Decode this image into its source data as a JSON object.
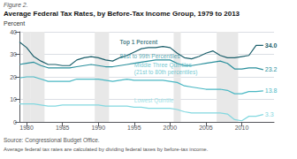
{
  "chart_data": {
    "type": "line",
    "figure_label": "Figure 2.",
    "title": "Average Federal Tax Rates, by Before-Tax Income Group, 1979 to 2013",
    "ylabel": "Percent",
    "source": "Source: Congressional Budget Office.",
    "footnote": "Average federal tax rates are calculated by dividing federal taxes by before-tax income.",
    "x": [
      1979,
      1980,
      1981,
      1982,
      1983,
      1984,
      1985,
      1986,
      1987,
      1988,
      1989,
      1990,
      1991,
      1992,
      1993,
      1994,
      1995,
      1996,
      1997,
      1998,
      1999,
      2000,
      2001,
      2002,
      2003,
      2004,
      2005,
      2006,
      2007,
      2008,
      2009,
      2010,
      2011,
      2012,
      2013
    ],
    "series": [
      {
        "name": "Top 1 Percent",
        "color": "#1c5f6b",
        "values": [
          35.5,
          33.0,
          29.0,
          27.0,
          25.5,
          25.5,
          25.0,
          25.0,
          27.5,
          28.5,
          29.0,
          28.5,
          27.5,
          27.0,
          28.5,
          29.5,
          31.0,
          32.5,
          33.0,
          33.0,
          33.5,
          33.0,
          30.5,
          28.5,
          28.0,
          29.0,
          30.5,
          31.5,
          29.5,
          28.5,
          28.5,
          29.0,
          29.5,
          34.0,
          34.0
        ],
        "value_labels": [
          null,
          null,
          null,
          null,
          null,
          null,
          null,
          null,
          null,
          null,
          null,
          null,
          null,
          null,
          null,
          null,
          null,
          null,
          null,
          null,
          null,
          null,
          null,
          null,
          null,
          null,
          null,
          null,
          null,
          null,
          null,
          null,
          null,
          null,
          "34.0"
        ]
      },
      {
        "name": "81st to 99th Percentiles",
        "color": "#2a8f9c",
        "values": [
          25.5,
          26.0,
          26.5,
          25.0,
          24.0,
          24.0,
          24.0,
          24.0,
          24.5,
          25.0,
          25.5,
          25.0,
          24.5,
          24.5,
          25.0,
          25.5,
          26.0,
          26.5,
          27.0,
          27.5,
          27.5,
          27.5,
          26.0,
          25.0,
          25.0,
          25.5,
          26.0,
          26.5,
          27.0,
          26.0,
          23.5,
          23.5,
          24.0,
          24.0,
          23.2
        ],
        "value_labels": [
          null,
          null,
          null,
          null,
          null,
          null,
          null,
          null,
          null,
          null,
          null,
          null,
          null,
          null,
          null,
          null,
          null,
          null,
          null,
          null,
          null,
          null,
          null,
          null,
          null,
          null,
          null,
          null,
          null,
          null,
          null,
          null,
          null,
          null,
          "23.2"
        ]
      },
      {
        "name": "Middle Three Quintiles\n(21st to 80th percentiles)",
        "color": "#4ab8c4",
        "values": [
          19.5,
          20.0,
          20.0,
          19.0,
          18.0,
          18.0,
          18.0,
          18.0,
          19.0,
          19.0,
          19.0,
          19.0,
          18.5,
          18.0,
          18.5,
          19.0,
          18.5,
          18.5,
          18.5,
          18.5,
          18.5,
          18.0,
          17.5,
          16.0,
          15.5,
          15.0,
          14.5,
          14.5,
          14.5,
          14.0,
          12.5,
          12.5,
          13.5,
          13.5,
          13.8
        ],
        "value_labels": [
          null,
          null,
          null,
          null,
          null,
          null,
          null,
          null,
          null,
          null,
          null,
          null,
          null,
          null,
          null,
          null,
          null,
          null,
          null,
          null,
          null,
          null,
          null,
          null,
          null,
          null,
          null,
          null,
          null,
          null,
          null,
          null,
          null,
          null,
          "13.8"
        ]
      },
      {
        "name": "Lowest Quintile",
        "color": "#82d8e0",
        "values": [
          8.0,
          8.0,
          8.0,
          7.5,
          7.0,
          7.0,
          7.5,
          7.5,
          7.5,
          7.5,
          7.5,
          7.5,
          7.0,
          7.0,
          7.0,
          7.0,
          6.5,
          6.5,
          6.0,
          6.0,
          6.0,
          6.0,
          5.5,
          4.5,
          4.0,
          4.0,
          4.0,
          4.0,
          4.0,
          3.5,
          1.0,
          0.5,
          2.5,
          2.5,
          3.3
        ],
        "value_labels": [
          null,
          null,
          null,
          null,
          null,
          null,
          null,
          null,
          null,
          null,
          null,
          null,
          null,
          null,
          null,
          null,
          null,
          null,
          null,
          null,
          null,
          null,
          null,
          null,
          null,
          null,
          null,
          null,
          null,
          null,
          null,
          null,
          null,
          null,
          "3.3"
        ]
      }
    ],
    "annotations": [
      {
        "text": "Top 1 Percent",
        "x": 1993,
        "y": 34.0,
        "color": "#1c5f6b"
      },
      {
        "text": "81st to 99th Percentiles",
        "x": 1993,
        "y": 27.8,
        "color": "#2a8f9c"
      },
      {
        "text": "Middle Three Quintiles\n(21st to 80th percentiles)",
        "x": 1995,
        "y": 20.5,
        "color": "#4ab8c4"
      },
      {
        "text": "Lowest Quintile",
        "x": 1995,
        "y": 8.2,
        "color": "#82d8e0"
      }
    ],
    "recession_bands": [
      [
        1980,
        1980
      ],
      [
        1981,
        1982
      ],
      [
        1990,
        1991
      ],
      [
        2001,
        2001
      ],
      [
        2007,
        2009
      ]
    ],
    "xlim": [
      1979,
      2014.5
    ],
    "xticks": [
      1980,
      1985,
      1990,
      1995,
      2000,
      2005,
      2010
    ],
    "ylim": [
      0,
      40
    ],
    "yticks": [
      0,
      10,
      20,
      30,
      40
    ],
    "grid": true
  }
}
